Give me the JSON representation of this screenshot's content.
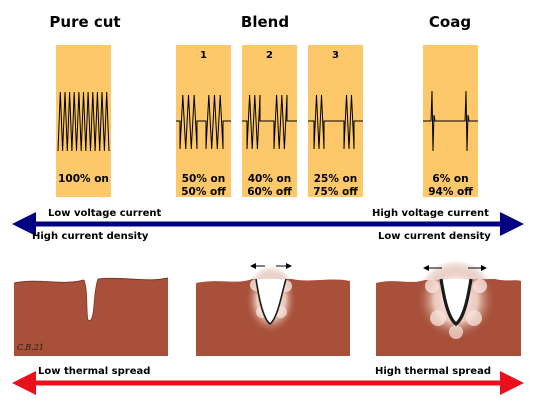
{
  "headings": {
    "pure_cut": "Pure cut",
    "blend": "Blend",
    "coag": "Coag"
  },
  "panels": {
    "pure_cut": {
      "duty_on": "100% on",
      "duty_off": ""
    },
    "blend_1": {
      "number": "1",
      "duty_on": "50% on",
      "duty_off": "50% off"
    },
    "blend_2": {
      "number": "2",
      "duty_on": "40% on",
      "duty_off": "60% off"
    },
    "blend_3": {
      "number": "3",
      "duty_on": "25% on",
      "duty_off": "75% off"
    },
    "coag": {
      "duty_on": "6% on",
      "duty_off": "94% off"
    }
  },
  "voltage_scale": {
    "left_top": "Low voltage current",
    "left_bottom": "High current density",
    "right_top": "High voltage current",
    "right_bottom": "Low current density",
    "arrow_color": "#000080"
  },
  "thermal_scale": {
    "left": "Low thermal spread",
    "right": "High thermal spread",
    "arrow_color": "#e8101a"
  },
  "signature": "C.B.21",
  "colors": {
    "panel": "#fdc86a",
    "tissue": "#a8503a",
    "char": "#1a1a1a"
  }
}
